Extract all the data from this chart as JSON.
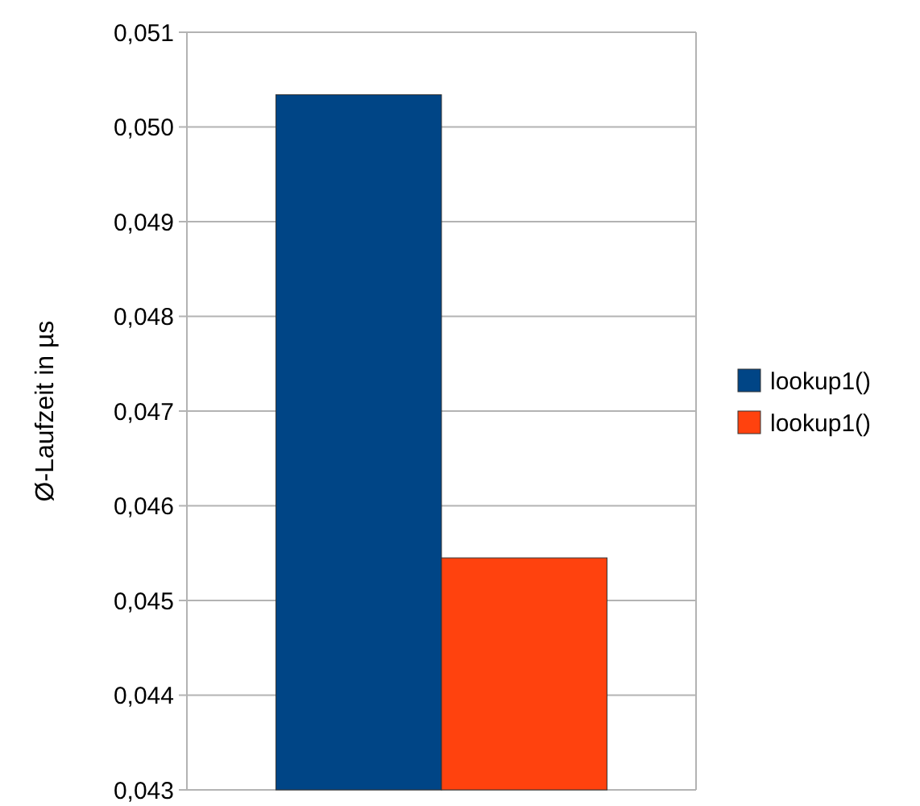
{
  "chart_data": {
    "type": "bar",
    "ylabel": "Ø-Laufzeit in µs",
    "categories": [
      null
    ],
    "series": [
      {
        "name": "lookup1()",
        "color": "#004586",
        "values": [
          0.05034
        ]
      },
      {
        "name": "lookup1()",
        "color": "#ff420e",
        "values": [
          0.04545
        ]
      }
    ],
    "ylim": [
      0.043,
      0.051
    ],
    "yticks": [
      {
        "value": 0.043,
        "label": "0,043"
      },
      {
        "value": 0.044,
        "label": "0,044"
      },
      {
        "value": 0.045,
        "label": "0,045"
      },
      {
        "value": 0.046,
        "label": "0,046"
      },
      {
        "value": 0.047,
        "label": "0,047"
      },
      {
        "value": 0.048,
        "label": "0,048"
      },
      {
        "value": 0.049,
        "label": "0,049"
      },
      {
        "value": 0.05,
        "label": "0,050"
      },
      {
        "value": 0.051,
        "label": "0,051"
      }
    ],
    "grid": "y",
    "legend": "right"
  }
}
